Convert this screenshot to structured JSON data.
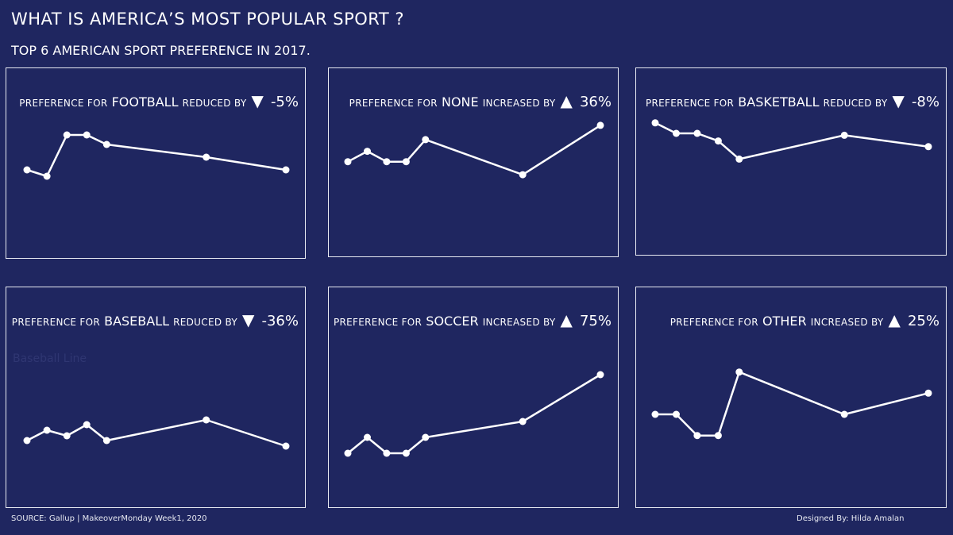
{
  "header": {
    "title": "WHAT IS AMERICA’S MOST POPULAR SPORT ?",
    "subtitle": "TOP 6 AMERICAN SPORT PREFERENCE IN 2017."
  },
  "footer": {
    "source": "SOURCE: Gallup | MakeoverMonday Week1, 2020",
    "credit": "Designed By: Hilda Amalan"
  },
  "colors": {
    "background": "#1f2660",
    "line": "#ffffff",
    "border": "#e8eaf2"
  },
  "panels": [
    {
      "prefix": "PREFERENCE FOR",
      "sport": "FOOTBALL",
      "verb": "REDUCED BY",
      "arrow": "▼",
      "pct": "-5%",
      "ghost": ""
    },
    {
      "prefix": "PREFERENCE FOR",
      "sport": "NONE",
      "verb": "INCREASED BY",
      "arrow": "▲",
      "pct": "36%",
      "ghost": ""
    },
    {
      "prefix": "PREFERENCE FOR",
      "sport": "BASKETBALL",
      "verb": "REDUCED BY",
      "arrow": "▼",
      "pct": "-8%",
      "ghost": ""
    },
    {
      "prefix": "PREFERENCE FOR",
      "sport": "BASEBALL",
      "verb": "REDUCED BY",
      "arrow": "▼",
      "pct": "-36%",
      "ghost": "Baseball Line"
    },
    {
      "prefix": "PREFERENCE FOR",
      "sport": "SOCCER",
      "verb": "INCREASED BY",
      "arrow": "▲",
      "pct": "75%",
      "ghost": ""
    },
    {
      "prefix": "PREFERENCE FOR",
      "sport": "OTHER",
      "verb": "INCREASED BY",
      "arrow": "▲",
      "pct": "25%",
      "ghost": ""
    }
  ],
  "chart_data": [
    {
      "type": "line",
      "title": "FOOTBALL",
      "x": [
        1,
        2,
        3,
        4,
        5,
        10,
        14
      ],
      "values": [
        0.6,
        0.2,
        2.8,
        2.8,
        2.2,
        1.4,
        0.6
      ],
      "ylim": [
        -4,
        5
      ]
    },
    {
      "type": "line",
      "title": "NONE",
      "x": [
        1,
        2,
        3,
        4,
        5,
        10,
        14
      ],
      "values": [
        0.25,
        1.05,
        0.25,
        0.25,
        1.95,
        -0.75,
        3.05
      ],
      "ylim": [
        -6,
        5
      ]
    },
    {
      "type": "line",
      "title": "BASKETBALL",
      "x": [
        1,
        2,
        3,
        4,
        5,
        10,
        14
      ],
      "values": [
        3.6,
        2.5,
        2.5,
        1.7,
        -0.2,
        2.3,
        1.1
      ],
      "ylim": [
        -9,
        6
      ]
    },
    {
      "type": "line",
      "title": "BASEBALL",
      "x": [
        1,
        2,
        3,
        4,
        5,
        10,
        14
      ],
      "values": [
        2.7,
        4.0,
        3.3,
        4.7,
        2.7,
        5.3,
        2.0
      ],
      "ylim": [
        -4,
        16
      ]
    },
    {
      "type": "line",
      "title": "SOCCER",
      "x": [
        1,
        2,
        3,
        4,
        5,
        10,
        14
      ],
      "values": [
        0.1,
        2.1,
        0.1,
        0.1,
        2.1,
        4.1,
        10.0
      ],
      "ylim": [
        -5,
        15
      ]
    },
    {
      "type": "line",
      "title": "OTHER",
      "x": [
        1,
        2,
        3,
        4,
        5,
        10,
        14
      ],
      "values": [
        3.5,
        3.5,
        1.5,
        1.5,
        7.5,
        3.5,
        5.5
      ],
      "ylim": [
        -4,
        11
      ]
    }
  ]
}
